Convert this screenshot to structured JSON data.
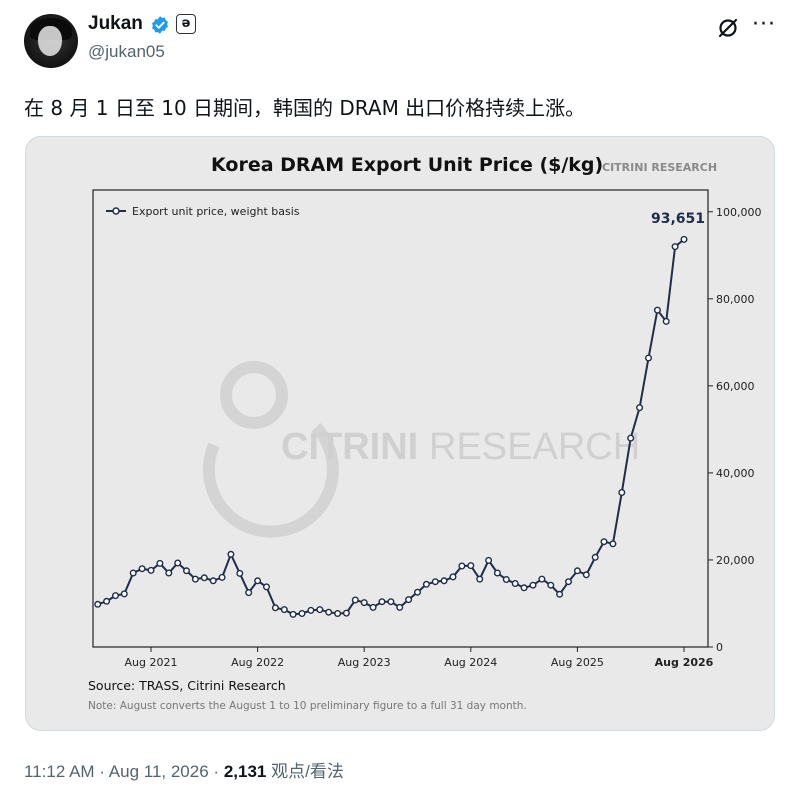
{
  "tweet": {
    "author_name": "Jukan",
    "handle": "@jukan05",
    "badge_char": "ə",
    "text": "在 8 月 1 日至 10 日期间，韩国的 DRAM 出口价格持续上涨。",
    "time": "11:12 AM",
    "date": "Aug 11, 2026",
    "views_count": "2,131",
    "views_label": "观点/看法",
    "separator": "·"
  },
  "chart": {
    "watermark_brand_bold": "CITRINI",
    "watermark_brand_light": "RESEARCH",
    "brand_tag": "CITRINI RESEARCH",
    "source": "Source: TRASS, Citrini Research",
    "note": "Note: August converts the August 1 to 10 preliminary figure to a full 31 day month.",
    "accent_color": "#1f2d4a"
  },
  "chart_data": {
    "type": "line",
    "title": "Korea DRAM Export Unit Price ($/kg)",
    "series": [
      {
        "name": "Export unit price, weight basis",
        "values": [
          9800,
          10500,
          11800,
          12200,
          17000,
          18000,
          17600,
          19200,
          17000,
          19300,
          17500,
          15600,
          15900,
          15200,
          16000,
          21300,
          16900,
          12500,
          15200,
          13800,
          9000,
          8600,
          7500,
          7700,
          8400,
          8600,
          8000,
          7700,
          7800,
          10800,
          10200,
          9100,
          10400,
          10400,
          9100,
          10900,
          12600,
          14400,
          15000,
          15200,
          16100,
          18600,
          18700,
          15600,
          19900,
          17000,
          15500,
          14600,
          13600,
          14200,
          15600,
          14200,
          12100,
          15000,
          17500,
          16600,
          20600,
          24200,
          23700,
          35500,
          48000,
          55000,
          66400,
          77400,
          74800,
          92000,
          93651
        ]
      }
    ],
    "x_start": "2021-02",
    "x_end": "2026-08",
    "x_ticks": [
      "Aug 2021",
      "Aug 2022",
      "Aug 2023",
      "Aug 2024",
      "Aug 2025",
      "Aug 2026"
    ],
    "y_ticks": [
      "0",
      "20,000",
      "40,000",
      "60,000",
      "80,000",
      "100,000"
    ],
    "ylim": [
      0,
      105000
    ],
    "y_axis_side": "right",
    "last_value_label": "93,651",
    "grid": false,
    "legend_position": "top-left"
  }
}
